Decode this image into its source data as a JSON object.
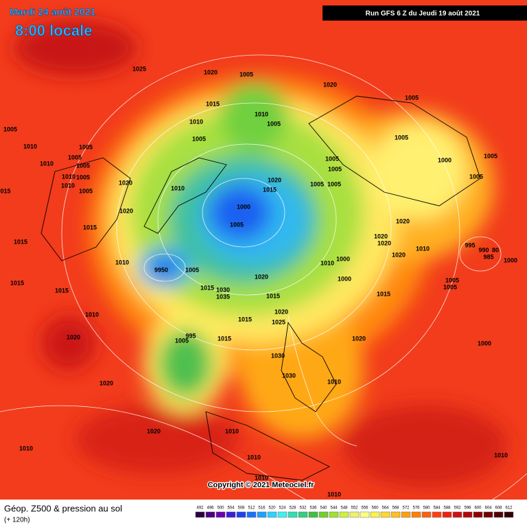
{
  "header": {
    "date": "Mardi 24 août 2021",
    "time": "8:00 locale",
    "run": "Run GFS 6 Z du Jeudi 19 août 2021"
  },
  "isobar_labels": [
    "1025",
    "1020",
    "1005",
    "1020",
    "1005",
    "1015",
    "1010",
    "1005",
    "1010",
    "1005",
    "1010",
    "1005",
    "1005",
    "1010",
    "1005",
    "1005",
    "1005",
    "1000",
    "1005",
    "1005",
    "1005",
    "1005",
    "1010",
    "1010",
    "1005",
    "1005",
    "1020",
    "1010",
    "1020",
    "1015",
    "1005",
    "1005",
    "015",
    "1000",
    "1020",
    "1015",
    "1005",
    "1020",
    "1020",
    "1020",
    "1015",
    "995",
    "990",
    "80",
    "985",
    "1000",
    "1010",
    "1020",
    "1010",
    "9950",
    "1005",
    "1010",
    "1000",
    "1000",
    "1020",
    "1005",
    "1005",
    "1015",
    "1015",
    "1015",
    "1030",
    "1035",
    "1015",
    "1015",
    "1010",
    "1020",
    "1015",
    "1025",
    "1020",
    "1005",
    "995",
    "1015",
    "1020",
    "1000",
    "1030",
    "1030",
    "1010",
    "1020",
    "1020",
    "1010",
    "1010",
    "1010",
    "1010",
    "1010",
    "1010"
  ],
  "copyright": "Copyright © 2021 Meteociel.fr",
  "footer": {
    "title": "Géop. Z500 & pression au sol",
    "range": "(+ 120h)"
  },
  "color_scale": {
    "ticks": [
      492,
      496,
      500,
      504,
      508,
      512,
      516,
      520,
      524,
      528,
      532,
      536,
      540,
      544,
      548,
      552,
      556,
      560,
      564,
      568,
      572,
      576,
      580,
      584,
      588,
      592,
      596,
      600,
      604,
      608,
      612
    ],
    "colors": [
      "#2a0040",
      "#4a0080",
      "#6a00b0",
      "#3c1ed2",
      "#2040f0",
      "#1a70ff",
      "#20a0ff",
      "#30d0ff",
      "#40f0f0",
      "#30e0b0",
      "#30d080",
      "#40c040",
      "#70d030",
      "#a0e030",
      "#d0f040",
      "#f0f070",
      "#ffff80",
      "#fff050",
      "#ffd830",
      "#ffc020",
      "#ffa010",
      "#ff8000",
      "#ff6010",
      "#ff4010",
      "#f02010",
      "#d01010",
      "#b00808",
      "#900000",
      "#700000",
      "#500000",
      "#300000"
    ]
  }
}
